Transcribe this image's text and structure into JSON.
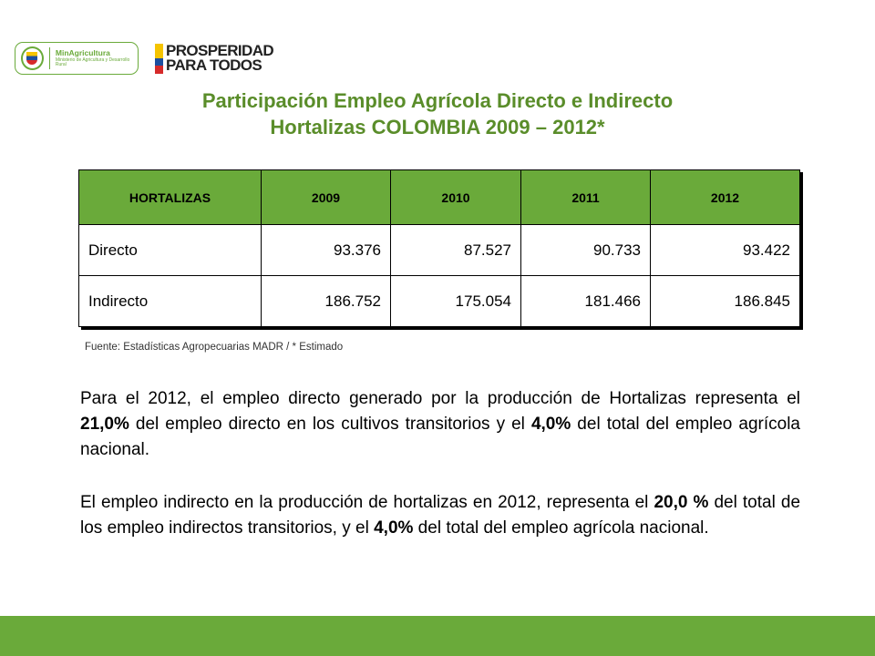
{
  "logos": {
    "ministry_name": "MinAgricultura",
    "ministry_subtitle": "Ministerio de Agricultura y Desarrollo Rural",
    "prosperidad_line1": "PROSPERIDAD",
    "prosperidad_line2": "PARA TODOS"
  },
  "title": {
    "line1": "Participación Empleo Agrícola Directo e Indirecto",
    "line2": "Hortalizas COLOMBIA 2009 – 2012*"
  },
  "table": {
    "headers": [
      "HORTALIZAS",
      "2009",
      "2010",
      "2011",
      "2012"
    ],
    "rows": [
      {
        "label": "Directo",
        "values": [
          "93.376",
          "87.527",
          "90.733",
          "93.422"
        ]
      },
      {
        "label": "Indirecto",
        "values": [
          "186.752",
          "175.054",
          "181.466",
          "186.845"
        ]
      }
    ]
  },
  "source": "Fuente: Estadísticas Agropecuarias MADR / * Estimado",
  "paragraph1": {
    "t1": "Para el 2012, el empleo directo generado por la producción de Hortalizas representa el ",
    "b1": "21,0%",
    "t2": " del empleo directo en los cultivos transitorios y el ",
    "b2": "4,0%",
    "t3": "  del total del empleo agrícola nacional."
  },
  "paragraph2": {
    "t1": "El empleo indirecto en la producción de hortalizas en 2012, representa el ",
    "b1": "20,0 %",
    "t2": " del total de los empleo indirectos transitorios, y el ",
    "b2": "4,0%",
    "t3": " del total del empleo agrícola nacional."
  },
  "colors": {
    "accent_green": "#6aaa3a",
    "title_green": "#5a8d2a"
  }
}
